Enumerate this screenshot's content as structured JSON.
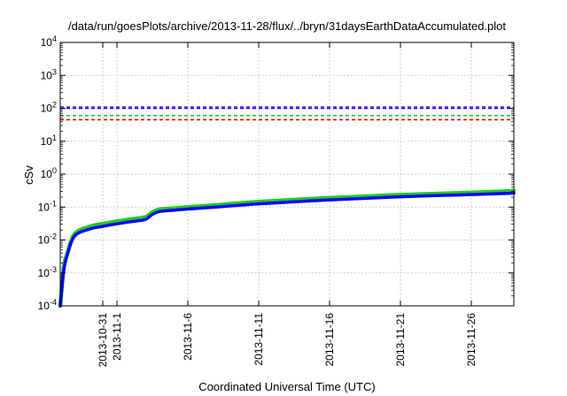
{
  "chart_data": {
    "type": "line",
    "title": "/data/run/goesPlots/archive/2013-11-28/flux/../bryn/31daysEarthDataAccumulated.plot",
    "xlabel": "Coordinated Universal Time (UTC)",
    "ylabel": "cSv",
    "yscale": "log",
    "ylim": [
      0.0001,
      10000
    ],
    "xlim": [
      "2013-10-28",
      "2013-11-29"
    ],
    "grid": true,
    "y_ticks": [
      {
        "base": "10",
        "exp": "-4"
      },
      {
        "base": "10",
        "exp": "-3"
      },
      {
        "base": "10",
        "exp": "-2"
      },
      {
        "base": "10",
        "exp": "-1"
      },
      {
        "base": "10",
        "exp": "0"
      },
      {
        "base": "10",
        "exp": "1"
      },
      {
        "base": "10",
        "exp": "2"
      },
      {
        "base": "10",
        "exp": "3"
      },
      {
        "base": "10",
        "exp": "4"
      }
    ],
    "x_ticks": [
      {
        "date": "2013-10-31",
        "label": "2013-10-31"
      },
      {
        "date": "2013-11-01",
        "label": "2013-11-1"
      },
      {
        "date": "2013-11-06",
        "label": "2013-11-6"
      },
      {
        "date": "2013-11-11",
        "label": "2013-11-11"
      },
      {
        "date": "2013-11-16",
        "label": "2013-11-16"
      },
      {
        "date": "2013-11-21",
        "label": "2013-11-21"
      },
      {
        "date": "2013-11-26",
        "label": "2013-11-26"
      }
    ],
    "thresholds": [
      {
        "y": 110,
        "color": "#8a2be2"
      },
      {
        "y": 100,
        "color": "#0000ff"
      },
      {
        "y": 60,
        "color": "#22cc22"
      },
      {
        "y": 45,
        "color": "#ee0000"
      }
    ],
    "series": [
      {
        "color": "#22cc22",
        "x": [
          "2013-10-28",
          "2013-10-28T06:00",
          "2013-10-28T12:00",
          "2013-10-29",
          "2013-10-30",
          "2013-10-31",
          "2013-11-01",
          "2013-11-02",
          "2013-11-03",
          "2013-11-03T12:00",
          "2013-11-04",
          "2013-11-05",
          "2013-11-06",
          "2013-11-08",
          "2013-11-11",
          "2013-11-16",
          "2013-11-21",
          "2013-11-26",
          "2013-11-29"
        ],
        "values": [
          0.0001,
          0.0015,
          0.004,
          0.015,
          0.025,
          0.031,
          0.037,
          0.043,
          0.05,
          0.07,
          0.085,
          0.092,
          0.1,
          0.115,
          0.145,
          0.19,
          0.235,
          0.275,
          0.31
        ]
      },
      {
        "color": "#0000ff",
        "x": [
          "2013-10-28",
          "2013-10-28T06:00",
          "2013-10-28T12:00",
          "2013-10-29",
          "2013-10-30",
          "2013-10-31",
          "2013-11-01",
          "2013-11-02",
          "2013-11-03",
          "2013-11-03T12:00",
          "2013-11-04",
          "2013-11-05",
          "2013-11-06",
          "2013-11-08",
          "2013-11-11",
          "2013-11-16",
          "2013-11-21",
          "2013-11-26",
          "2013-11-29"
        ],
        "values": [
          0.0001,
          0.0012,
          0.0035,
          0.013,
          0.021,
          0.026,
          0.031,
          0.036,
          0.042,
          0.06,
          0.073,
          0.08,
          0.087,
          0.1,
          0.125,
          0.165,
          0.205,
          0.24,
          0.265
        ]
      }
    ]
  }
}
